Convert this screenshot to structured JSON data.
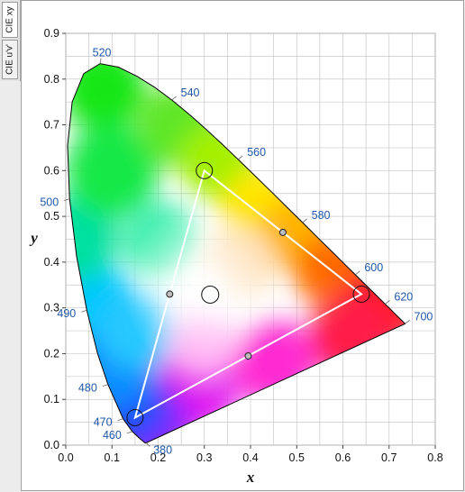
{
  "tabs": [
    {
      "label": "CIE xy",
      "active": true
    },
    {
      "label": "CIE u'v'",
      "active": false
    }
  ],
  "chart_data": {
    "type": "scatter",
    "subtype": "cie-1931-chromaticity-diagram",
    "xlabel": "x",
    "ylabel": "y",
    "xlim": [
      0.0,
      0.8
    ],
    "ylim": [
      0.0,
      0.9
    ],
    "x_ticks": [
      "0.0",
      "0.1",
      "0.2",
      "0.3",
      "0.4",
      "0.5",
      "0.6",
      "0.7",
      "0.8"
    ],
    "y_ticks": [
      "0.0",
      "0.1",
      "0.2",
      "0.3",
      "0.4",
      "0.5",
      "0.6",
      "0.7",
      "0.8",
      "0.9"
    ],
    "grid": true,
    "locus": [
      [
        0.1741,
        0.005
      ],
      [
        0.1738,
        0.0049
      ],
      [
        0.1733,
        0.0048
      ],
      [
        0.1726,
        0.0048
      ],
      [
        0.1714,
        0.0051
      ],
      [
        0.1689,
        0.0069
      ],
      [
        0.1644,
        0.0109
      ],
      [
        0.1566,
        0.0177
      ],
      [
        0.144,
        0.0297
      ],
      [
        0.1241,
        0.0578
      ],
      [
        0.0913,
        0.1327
      ],
      [
        0.0687,
        0.2007
      ],
      [
        0.0454,
        0.295
      ],
      [
        0.0235,
        0.4127
      ],
      [
        0.0082,
        0.5384
      ],
      [
        0.0039,
        0.6548
      ],
      [
        0.0139,
        0.7502
      ],
      [
        0.0389,
        0.812
      ],
      [
        0.0743,
        0.8338
      ],
      [
        0.1142,
        0.8262
      ],
      [
        0.1547,
        0.8059
      ],
      [
        0.1929,
        0.7816
      ],
      [
        0.2296,
        0.7543
      ],
      [
        0.2658,
        0.7243
      ],
      [
        0.3016,
        0.6923
      ],
      [
        0.3373,
        0.6589
      ],
      [
        0.3731,
        0.6245
      ],
      [
        0.4087,
        0.5896
      ],
      [
        0.4441,
        0.5547
      ],
      [
        0.4788,
        0.5202
      ],
      [
        0.5125,
        0.4866
      ],
      [
        0.5448,
        0.4544
      ],
      [
        0.5752,
        0.4242
      ],
      [
        0.6029,
        0.3965
      ],
      [
        0.627,
        0.3725
      ],
      [
        0.6482,
        0.3514
      ],
      [
        0.6658,
        0.334
      ],
      [
        0.6801,
        0.3197
      ],
      [
        0.6915,
        0.3083
      ],
      [
        0.7006,
        0.2993
      ],
      [
        0.7079,
        0.292
      ],
      [
        0.714,
        0.2859
      ],
      [
        0.719,
        0.2809
      ],
      [
        0.723,
        0.277
      ],
      [
        0.726,
        0.274
      ],
      [
        0.7283,
        0.2717
      ],
      [
        0.73,
        0.27
      ],
      [
        0.7311,
        0.2689
      ],
      [
        0.732,
        0.268
      ],
      [
        0.7327,
        0.2673
      ],
      [
        0.7334,
        0.2666
      ],
      [
        0.734,
        0.266
      ],
      [
        0.7344,
        0.2656
      ],
      [
        0.7346,
        0.2654
      ],
      [
        0.7347,
        0.2653
      ]
    ],
    "wavelength_labels": [
      {
        "text": "380",
        "x": 0.1741,
        "y": 0.005,
        "anchor": "br"
      },
      {
        "text": "460",
        "x": 0.144,
        "y": 0.0297,
        "anchor": "l"
      },
      {
        "text": "470",
        "x": 0.1241,
        "y": 0.0578,
        "anchor": "l"
      },
      {
        "text": "480",
        "x": 0.0913,
        "y": 0.1327,
        "anchor": "l"
      },
      {
        "text": "490",
        "x": 0.0454,
        "y": 0.295,
        "anchor": "l"
      },
      {
        "text": "500",
        "x": 0.0082,
        "y": 0.5384,
        "anchor": "l"
      },
      {
        "text": "520",
        "x": 0.0743,
        "y": 0.8338,
        "anchor": "t"
      },
      {
        "text": "540",
        "x": 0.2296,
        "y": 0.7543,
        "anchor": "r"
      },
      {
        "text": "560",
        "x": 0.3731,
        "y": 0.6245,
        "anchor": "r"
      },
      {
        "text": "580",
        "x": 0.5125,
        "y": 0.4866,
        "anchor": "r"
      },
      {
        "text": "600",
        "x": 0.627,
        "y": 0.3725,
        "anchor": "r"
      },
      {
        "text": "620",
        "x": 0.6915,
        "y": 0.3083,
        "anchor": "r"
      },
      {
        "text": "700",
        "x": 0.7347,
        "y": 0.2653,
        "anchor": "r"
      }
    ],
    "gamut_triangle": [
      [
        0.64,
        0.33
      ],
      [
        0.3,
        0.6
      ],
      [
        0.15,
        0.06
      ]
    ],
    "gamut_midpoints": [
      [
        0.47,
        0.465
      ],
      [
        0.225,
        0.33
      ],
      [
        0.395,
        0.195
      ]
    ],
    "white_point": [
      0.3127,
      0.329
    ],
    "colors": {
      "locus_outline": "#000000",
      "wavelength_label": "#1f57a8",
      "triangle": "#ffffff",
      "grid": "#c8c8c8"
    }
  }
}
